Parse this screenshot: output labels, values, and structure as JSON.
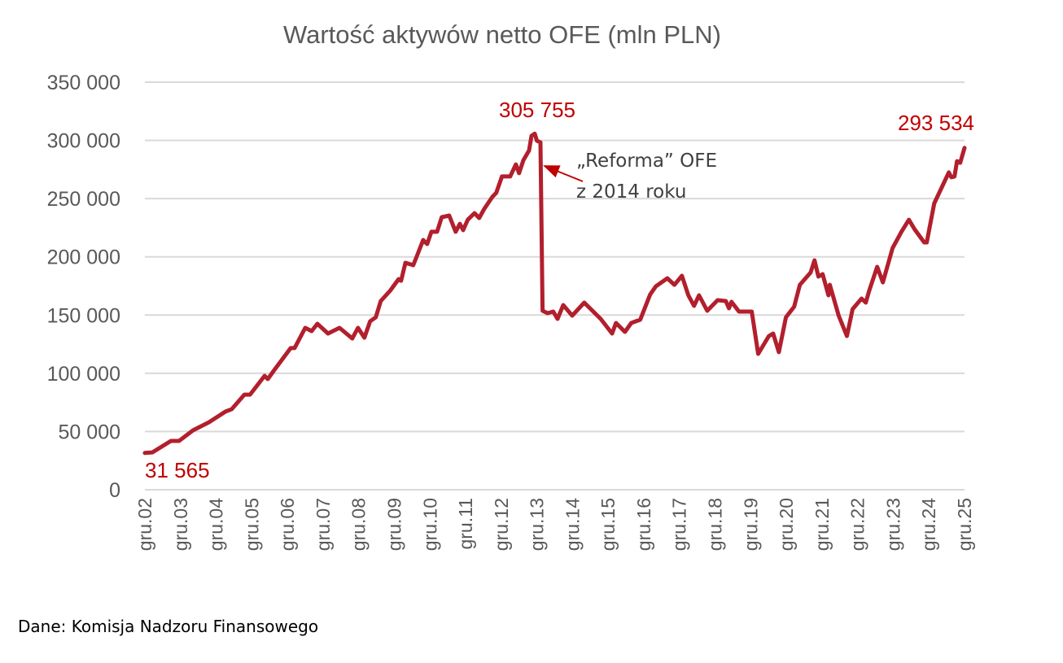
{
  "chart_data": {
    "type": "line",
    "title": "Wartość aktywów netto OFE (mln PLN)",
    "xlabel": "",
    "ylabel": "",
    "ylim": [
      0,
      350000
    ],
    "yticks": [
      0,
      50000,
      100000,
      150000,
      200000,
      250000,
      300000,
      350000
    ],
    "ytick_labels": [
      "0",
      "50 000",
      "100 000",
      "150 000",
      "200 000",
      "250 000",
      "300 000",
      "350 000"
    ],
    "xlim": [
      2002.92,
      2025.92
    ],
    "xtick_labels": [
      "gru.02",
      "gru.03",
      "gru.04",
      "gru.05",
      "gru.06",
      "gru.07",
      "gru.08",
      "gru.09",
      "gru.10",
      "gru.11",
      "gru.12",
      "gru.13",
      "gru.14",
      "gru.15",
      "gru.16",
      "gru.17",
      "gru.18",
      "gru.19",
      "gru.20",
      "gru.21",
      "gru.22",
      "gru.23",
      "gru.24",
      "gru.25"
    ],
    "grid": true,
    "legend": "none",
    "series": [
      {
        "name": "Wartość aktywów netto OFE",
        "color": "#b21f2d",
        "x": [
          2002.92,
          2003.13,
          2003.65,
          2003.88,
          2004.27,
          2004.72,
          2005.18,
          2005.36,
          2005.71,
          2005.87,
          2006.28,
          2006.37,
          2006.55,
          2007.01,
          2007.12,
          2007.42,
          2007.6,
          2007.76,
          2008.06,
          2008.38,
          2008.74,
          2008.9,
          2009.08,
          2009.24,
          2009.4,
          2009.54,
          2009.81,
          2010.04,
          2010.11,
          2010.23,
          2010.45,
          2010.55,
          2010.73,
          2010.84,
          2010.96,
          2011.12,
          2011.25,
          2011.46,
          2011.64,
          2011.76,
          2011.85,
          2011.98,
          2012.17,
          2012.3,
          2012.44,
          2012.67,
          2012.78,
          2012.94,
          2013.17,
          2013.33,
          2013.42,
          2013.54,
          2013.7,
          2013.77,
          2013.86,
          2013.92,
          2014.02,
          2014.08,
          2014.22,
          2014.38,
          2014.5,
          2014.66,
          2014.91,
          2015.25,
          2015.71,
          2016.03,
          2016.14,
          2016.39,
          2016.57,
          2016.82,
          2017.1,
          2017.26,
          2017.58,
          2017.78,
          2017.99,
          2018.17,
          2018.33,
          2018.47,
          2018.7,
          2018.99,
          2019.22,
          2019.31,
          2019.38,
          2019.59,
          2019.95,
          2020.13,
          2020.43,
          2020.55,
          2020.71,
          2020.91,
          2021.14,
          2021.3,
          2021.6,
          2021.71,
          2021.82,
          2021.94,
          2022.1,
          2022.14,
          2022.39,
          2022.62,
          2022.78,
          2023.03,
          2023.15,
          2023.24,
          2023.47,
          2023.63,
          2023.9,
          2024.15,
          2024.36,
          2024.52,
          2024.79,
          2024.86,
          2025.07,
          2025.48,
          2025.55,
          2025.64,
          2025.71,
          2025.8,
          2025.92
        ],
        "values": [
          31565,
          32100,
          41900,
          41900,
          51000,
          58000,
          67100,
          69200,
          81700,
          81700,
          97800,
          95000,
          102700,
          121600,
          121600,
          139000,
          136200,
          142500,
          134100,
          139000,
          129900,
          139000,
          130600,
          144600,
          148100,
          162100,
          171200,
          180900,
          179500,
          194900,
          192800,
          200500,
          214500,
          211000,
          221500,
          221500,
          234000,
          235400,
          221500,
          228400,
          222900,
          231900,
          237500,
          233300,
          241000,
          251500,
          255000,
          269000,
          269000,
          279400,
          271800,
          282900,
          291300,
          303900,
          305755,
          299700,
          298300,
          153700,
          151600,
          153000,
          146700,
          158600,
          149500,
          160700,
          146700,
          134100,
          143200,
          135500,
          143200,
          146000,
          167700,
          174700,
          181600,
          176000,
          183700,
          167000,
          157900,
          167000,
          153700,
          162800,
          162100,
          155800,
          161400,
          153000,
          153000,
          116700,
          132000,
          134100,
          118100,
          148100,
          157200,
          176000,
          186500,
          197000,
          183000,
          185100,
          167000,
          176000,
          149500,
          132000,
          155100,
          164200,
          160700,
          170500,
          191400,
          178100,
          207500,
          221500,
          231900,
          223600,
          212400,
          212400,
          245900,
          272500,
          268300,
          269000,
          282200,
          280800,
          293534
        ]
      }
    ],
    "annotations": {
      "start_label": "31 565",
      "peak_label": "305 755",
      "end_label": "293 534",
      "reform_line1": "„Reforma” OFE",
      "reform_line2": "z 2014 roku",
      "label_color": "#c00000"
    }
  },
  "footer": "Dane: Komisja Nadzoru Finansowego"
}
